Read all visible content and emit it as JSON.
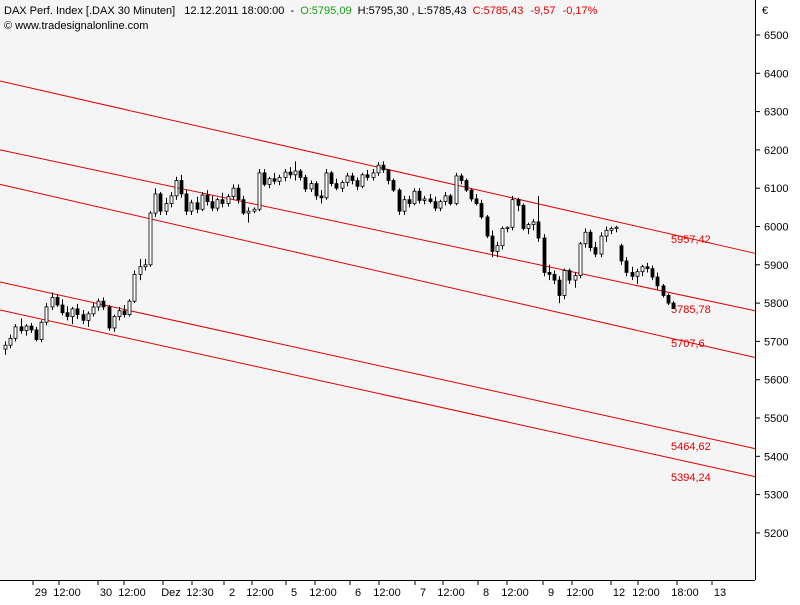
{
  "header": {
    "instrument": "DAX Perf. Index [.DAX  30 Minuten]",
    "datetime": "12.12.2011 18:00:00",
    "open": "O:5795,09",
    "high": "H:5795,30",
    "low": "L:5785,43",
    "close": "C:5785,43",
    "change": "-9,57",
    "change_pct": "-0,17%",
    "website": "www.tradesignalonline.com",
    "currency": "€",
    "colors": {
      "open": "#18a018",
      "close": "#e00000",
      "change": "#e00000"
    }
  },
  "chart_data": {
    "type": "candlestick",
    "ylim": [
      5180,
      6600
    ],
    "y_ticks": [
      6500,
      6400,
      6300,
      6200,
      6100,
      6000,
      5900,
      5800,
      5700,
      5600,
      5500,
      5400,
      5300,
      5200
    ],
    "y_tick_labels": [
      "6500",
      "6400",
      "6300",
      "6200",
      "6100",
      "6000",
      "5900",
      "5800",
      "5700",
      "5600",
      "5500",
      "5400",
      "5300",
      "5200"
    ],
    "x_labels": [
      "29",
      "12:00",
      "30",
      "12:00",
      "Dez",
      "12:30",
      "2",
      "12:00",
      "5",
      "12:00",
      "6",
      "12:00",
      "7",
      "12:00",
      "8",
      "12:00",
      "9",
      "12:00",
      "12",
      "12:00",
      "18:00",
      "13"
    ],
    "grid": false,
    "candles_ohlc": [
      [
        5680,
        5700,
        5665,
        5690
      ],
      [
        5690,
        5718,
        5682,
        5708
      ],
      [
        5708,
        5745,
        5700,
        5738
      ],
      [
        5738,
        5760,
        5720,
        5728
      ],
      [
        5728,
        5745,
        5715,
        5740
      ],
      [
        5740,
        5748,
        5722,
        5730
      ],
      [
        5730,
        5738,
        5700,
        5705
      ],
      [
        5705,
        5755,
        5698,
        5750
      ],
      [
        5750,
        5800,
        5742,
        5790
      ],
      [
        5790,
        5828,
        5782,
        5815
      ],
      [
        5815,
        5822,
        5790,
        5795
      ],
      [
        5795,
        5810,
        5768,
        5775
      ],
      [
        5775,
        5792,
        5755,
        5765
      ],
      [
        5765,
        5790,
        5745,
        5785
      ],
      [
        5785,
        5798,
        5758,
        5770
      ],
      [
        5770,
        5782,
        5745,
        5755
      ],
      [
        5755,
        5778,
        5738,
        5772
      ],
      [
        5772,
        5800,
        5765,
        5790
      ],
      [
        5790,
        5812,
        5780,
        5805
      ],
      [
        5805,
        5815,
        5782,
        5790
      ],
      [
        5790,
        5795,
        5728,
        5735
      ],
      [
        5735,
        5770,
        5725,
        5765
      ],
      [
        5765,
        5790,
        5755,
        5780
      ],
      [
        5780,
        5795,
        5762,
        5770
      ],
      [
        5770,
        5810,
        5765,
        5805
      ],
      [
        5805,
        5885,
        5800,
        5875
      ],
      [
        5875,
        5915,
        5860,
        5895
      ],
      [
        5895,
        5915,
        5885,
        5900
      ],
      [
        5900,
        6040,
        5895,
        6035
      ],
      [
        6035,
        6100,
        6025,
        6085
      ],
      [
        6085,
        6090,
        6030,
        6040
      ],
      [
        6040,
        6075,
        6030,
        6060
      ],
      [
        6060,
        6090,
        6050,
        6080
      ],
      [
        6080,
        6130,
        6070,
        6120
      ],
      [
        6120,
        6135,
        6075,
        6085
      ],
      [
        6085,
        6095,
        6030,
        6040
      ],
      [
        6040,
        6070,
        6030,
        6062
      ],
      [
        6062,
        6078,
        6035,
        6045
      ],
      [
        6045,
        6090,
        6040,
        6082
      ],
      [
        6082,
        6095,
        6055,
        6065
      ],
      [
        6065,
        6080,
        6040,
        6048
      ],
      [
        6048,
        6075,
        6040,
        6070
      ],
      [
        6070,
        6088,
        6050,
        6060
      ],
      [
        6060,
        6085,
        6052,
        6078
      ],
      [
        6078,
        6110,
        6070,
        6100
      ],
      [
        6100,
        6110,
        6060,
        6070
      ],
      [
        6070,
        6080,
        6030,
        6035
      ],
      [
        6035,
        6050,
        6010,
        6040
      ],
      [
        6040,
        6050,
        6035,
        6045
      ],
      [
        6045,
        6150,
        6040,
        6140
      ],
      [
        6140,
        6150,
        6105,
        6110
      ],
      [
        6110,
        6130,
        6100,
        6125
      ],
      [
        6125,
        6140,
        6110,
        6118
      ],
      [
        6118,
        6135,
        6108,
        6128
      ],
      [
        6128,
        6150,
        6118,
        6142
      ],
      [
        6142,
        6155,
        6125,
        6135
      ],
      [
        6135,
        6170,
        6120,
        6145
      ],
      [
        6145,
        6150,
        6120,
        6128
      ],
      [
        6128,
        6135,
        6090,
        6098
      ],
      [
        6098,
        6120,
        6090,
        6112
      ],
      [
        6112,
        6118,
        6070,
        6080
      ],
      [
        6080,
        6095,
        6060,
        6075
      ],
      [
        6075,
        6150,
        6070,
        6140
      ],
      [
        6140,
        6145,
        6105,
        6112
      ],
      [
        6112,
        6125,
        6095,
        6100
      ],
      [
        6100,
        6120,
        6090,
        6115
      ],
      [
        6115,
        6140,
        6105,
        6132
      ],
      [
        6132,
        6140,
        6110,
        6120
      ],
      [
        6120,
        6128,
        6095,
        6105
      ],
      [
        6105,
        6140,
        6100,
        6135
      ],
      [
        6135,
        6148,
        6120,
        6128
      ],
      [
        6128,
        6150,
        6120,
        6140
      ],
      [
        6140,
        6168,
        6132,
        6160
      ],
      [
        6160,
        6170,
        6140,
        6148
      ],
      [
        6148,
        6150,
        6110,
        6120
      ],
      [
        6120,
        6125,
        6090,
        6095
      ],
      [
        6095,
        6100,
        6030,
        6040
      ],
      [
        6040,
        6080,
        6030,
        6070
      ],
      [
        6070,
        6080,
        6050,
        6060
      ],
      [
        6060,
        6100,
        6055,
        6092
      ],
      [
        6092,
        6100,
        6060,
        6068
      ],
      [
        6068,
        6080,
        6058,
        6072
      ],
      [
        6072,
        6085,
        6060,
        6065
      ],
      [
        6065,
        6078,
        6040,
        6048
      ],
      [
        6048,
        6070,
        6040,
        6065
      ],
      [
        6065,
        6090,
        6055,
        6080
      ],
      [
        6080,
        6085,
        6055,
        6060
      ],
      [
        6060,
        6140,
        6055,
        6132
      ],
      [
        6132,
        6138,
        6110,
        6120
      ],
      [
        6120,
        6125,
        6090,
        6095
      ],
      [
        6095,
        6100,
        6065,
        6072
      ],
      [
        6072,
        6085,
        6055,
        6060
      ],
      [
        6060,
        6070,
        6020,
        6025
      ],
      [
        6025,
        6030,
        5970,
        5975
      ],
      [
        5975,
        5990,
        5920,
        5935
      ],
      [
        5935,
        5960,
        5920,
        5950
      ],
      [
        5950,
        6000,
        5940,
        5995
      ],
      [
        5995,
        6000,
        5985,
        5998
      ],
      [
        5998,
        6080,
        5990,
        6070
      ],
      [
        6070,
        6075,
        6040,
        6055
      ],
      [
        6055,
        6060,
        5990,
        5995
      ],
      [
        5995,
        6010,
        5980,
        6005
      ],
      [
        6005,
        6020,
        5990,
        6012
      ],
      [
        6012,
        6080,
        5960,
        5970
      ],
      [
        5970,
        5980,
        5870,
        5880
      ],
      [
        5880,
        5900,
        5860,
        5875
      ],
      [
        5875,
        5885,
        5850,
        5860
      ],
      [
        5860,
        5870,
        5800,
        5820
      ],
      [
        5820,
        5890,
        5810,
        5885
      ],
      [
        5885,
        5890,
        5850,
        5860
      ],
      [
        5860,
        5880,
        5840,
        5872
      ],
      [
        5872,
        5960,
        5865,
        5955
      ],
      [
        5955,
        5995,
        5945,
        5985
      ],
      [
        5985,
        5992,
        5935,
        5945
      ],
      [
        5945,
        5960,
        5920,
        5928
      ],
      [
        5928,
        5985,
        5920,
        5975
      ],
      [
        5975,
        6000,
        5960,
        5990
      ],
      [
        5990,
        6000,
        5980,
        5995
      ],
      [
        5995,
        6002,
        5985,
        5998
      ],
      [
        5950,
        5955,
        5900,
        5910
      ],
      [
        5910,
        5920,
        5870,
        5880
      ],
      [
        5880,
        5895,
        5860,
        5870
      ],
      [
        5870,
        5890,
        5850,
        5882
      ],
      [
        5882,
        5900,
        5870,
        5895
      ],
      [
        5895,
        5905,
        5880,
        5890
      ],
      [
        5890,
        5898,
        5860,
        5868
      ],
      [
        5868,
        5880,
        5835,
        5845
      ],
      [
        5845,
        5850,
        5815,
        5820
      ],
      [
        5820,
        5825,
        5795,
        5800
      ],
      [
        5800,
        5805,
        5785,
        5786
      ]
    ],
    "channel_lines": [
      {
        "start_value": 6380,
        "end_value": 5930,
        "label": "5957,42"
      },
      {
        "start_value": 6200,
        "end_value": 5780,
        "label": "5785,78"
      },
      {
        "start_value": 6110,
        "end_value": 5658,
        "label": "5707,6"
      },
      {
        "start_value": 5855,
        "end_value": 5420,
        "label": "5464,62"
      },
      {
        "start_value": 5782,
        "end_value": 5347,
        "label": "5394,24"
      }
    ],
    "colors": {
      "candle_up": "#ffffff",
      "candle_down": "#000000",
      "wick": "#000000",
      "channel": "#e00000",
      "plot_background": "#f5f5f5",
      "axis_text": "#000000"
    }
  }
}
